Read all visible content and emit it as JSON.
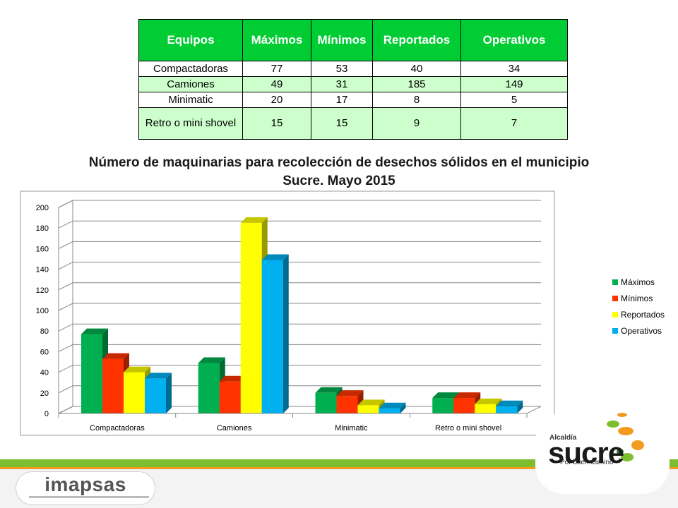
{
  "table": {
    "headers": [
      "Equipos",
      "Máximos",
      "Mínimos",
      "Reportados",
      "Operativos"
    ],
    "rows": [
      [
        "Compactadoras",
        "77",
        "53",
        "40",
        "34"
      ],
      [
        "Camiones",
        "49",
        "31",
        "185",
        "149"
      ],
      [
        "Minimatic",
        "20",
        "17",
        "8",
        "5"
      ],
      [
        "Retro o mini shovel",
        "15",
        "15",
        "9",
        "7"
      ]
    ],
    "header_color": "#00cc33",
    "alt_row_color": "#ccffcc"
  },
  "chart_data": {
    "type": "bar",
    "title": "Número de maquinarias para recolección de desechos sólidos en el municipio Sucre. Mayo 2015",
    "categories": [
      "Compactadoras",
      "Camiones",
      "Minimatic",
      "Retro o mini shovel"
    ],
    "series": [
      {
        "name": "Máximos",
        "values": [
          77,
          49,
          20,
          15
        ],
        "color": "#00b050"
      },
      {
        "name": "Mínimos",
        "values": [
          53,
          31,
          17,
          15
        ],
        "color": "#ff3300"
      },
      {
        "name": "Reportados",
        "values": [
          40,
          185,
          8,
          9
        ],
        "color": "#ffff00"
      },
      {
        "name": "Operativos",
        "values": [
          34,
          149,
          5,
          7
        ],
        "color": "#00b0f0"
      }
    ],
    "ylim": [
      0,
      200
    ],
    "yticks": [
      "0",
      "20",
      "40",
      "60",
      "80",
      "100",
      "120",
      "140",
      "160",
      "180",
      "200"
    ],
    "grid": true,
    "legend": "right"
  },
  "footer": {
    "logo_left": "imapsas",
    "logo_right_small": "Alcaldía",
    "logo_right_big": "sucre",
    "logo_right_tagline": "Por buen camino",
    "stripe_green": "#7dbe2e",
    "stripe_orange": "#f39b1f"
  }
}
